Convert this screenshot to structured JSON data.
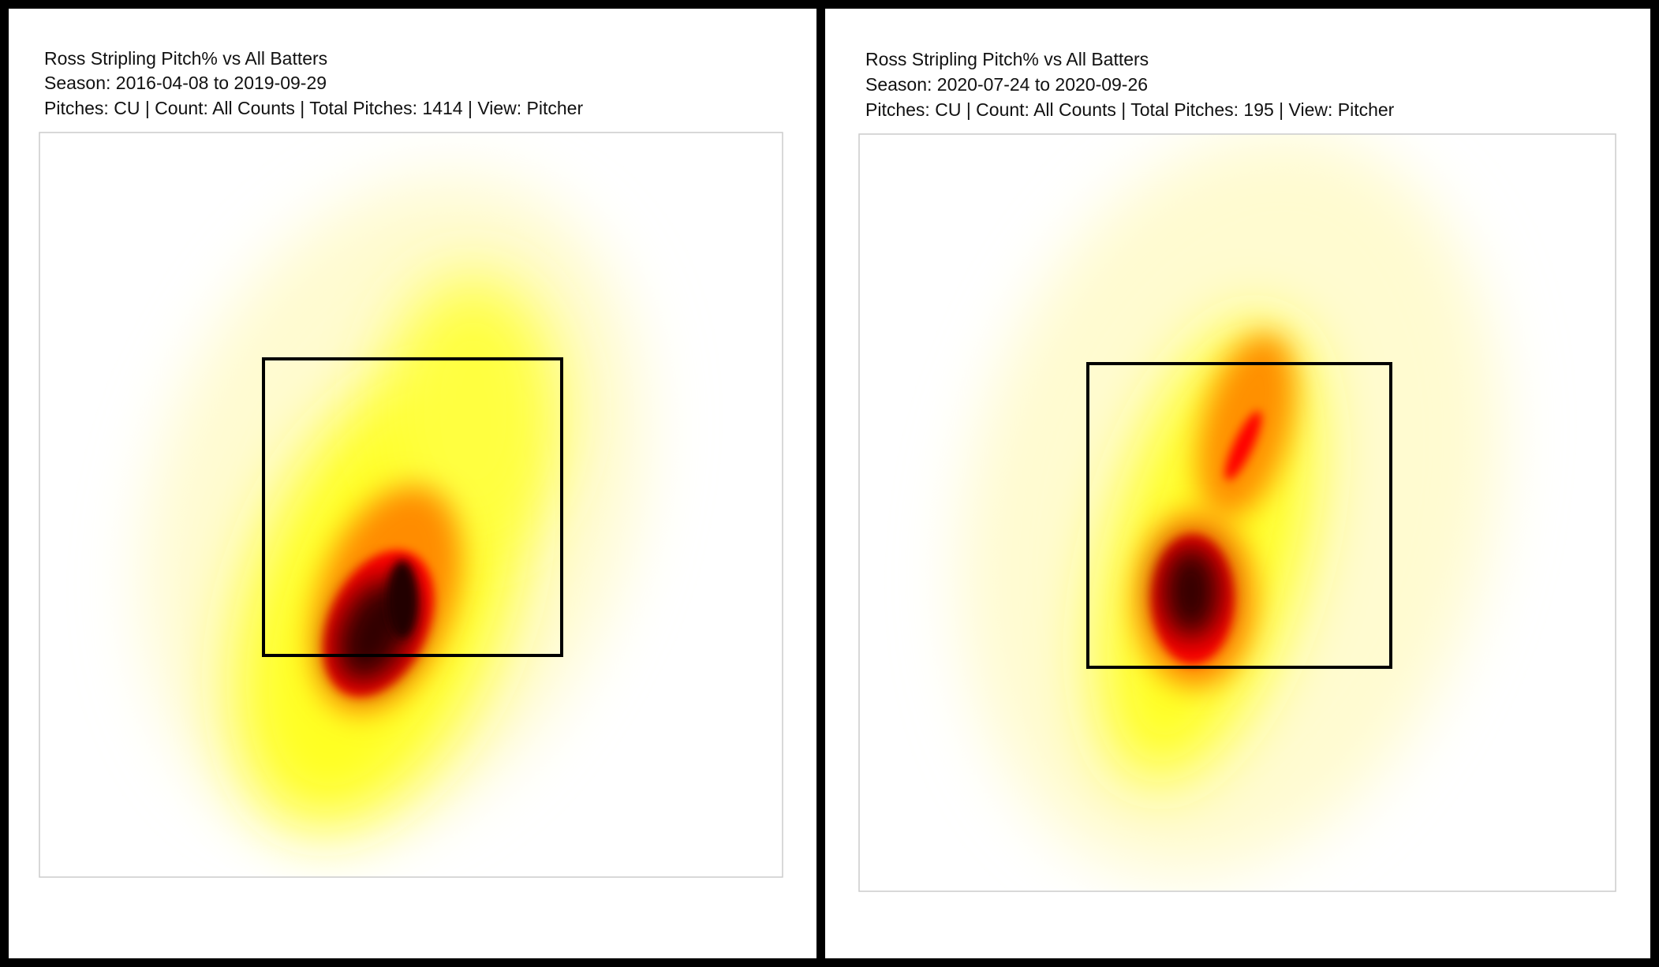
{
  "panels": [
    {
      "title": "Ross Stripling Pitch% vs All Batters",
      "season": "Season: 2016-04-08 to 2019-09-29",
      "details": "Pitches: CU | Count: All Counts | Total Pitches: 1414 | View: Pitcher"
    },
    {
      "title": "Ross Stripling Pitch% vs All Batters",
      "season": "Season: 2020-07-24 to 2020-09-26",
      "details": "Pitches: CU | Count: All Counts | Total Pitches: 195 | View: Pitcher"
    }
  ]
}
